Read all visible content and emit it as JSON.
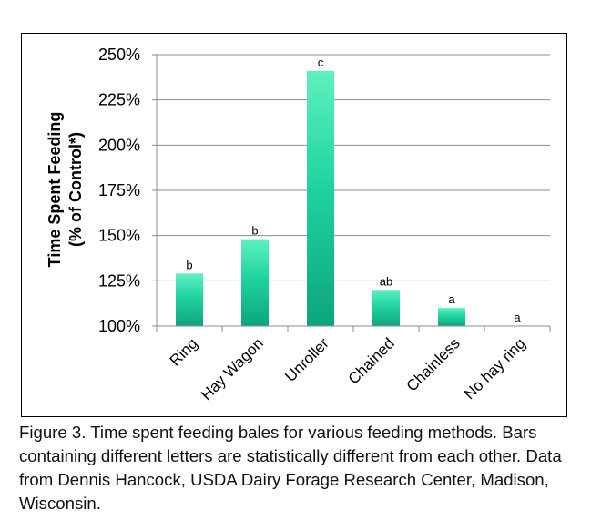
{
  "chart_data": {
    "type": "bar",
    "ylabel_line1": "Time Spent Feeding",
    "ylabel_line2": "(% of Control*)",
    "ylim": [
      100,
      250
    ],
    "yticks": [
      "100%",
      "125%",
      "150%",
      "175%",
      "200%",
      "225%",
      "250%"
    ],
    "ytick_values": [
      100,
      125,
      150,
      175,
      200,
      225,
      250
    ],
    "grid": true,
    "categories": [
      "Ring",
      "Hay Wagon",
      "Unroller",
      "Chained",
      "Chainless",
      "No hay ring"
    ],
    "values": [
      129,
      148,
      241,
      120,
      110,
      100
    ],
    "letters": [
      "b",
      "b",
      "c",
      "ab",
      "a",
      "a"
    ],
    "bar_color": "#1fd4a0",
    "bar_color_light": "#5ef0c0",
    "bar_color_dark": "#0ea57c"
  },
  "caption": "Figure 3. Time spent feeding bales for various feeding methods. Bars containing different letters are statistically different from each other. Data from Dennis Hancock, USDA Dairy Forage Research Center, Madison, Wisconsin."
}
